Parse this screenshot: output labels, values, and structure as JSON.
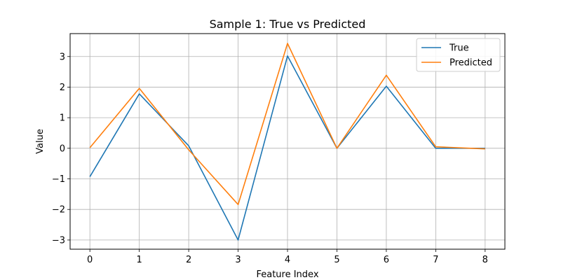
{
  "chart_data": {
    "type": "line",
    "title": "Sample 1: True vs Predicted",
    "xlabel": "Feature Index",
    "ylabel": "Value",
    "x": [
      0,
      1,
      2,
      3,
      4,
      5,
      6,
      7,
      8
    ],
    "xlim": [
      -0.4,
      8.4
    ],
    "ylim": [
      -3.3,
      3.75
    ],
    "xticks": [
      0,
      1,
      2,
      3,
      4,
      5,
      6,
      7,
      8
    ],
    "xtick_labels": [
      "0",
      "1",
      "2",
      "3",
      "4",
      "5",
      "6",
      "7",
      "8"
    ],
    "yticks": [
      -3,
      -2,
      -1,
      0,
      1,
      2,
      3
    ],
    "ytick_labels": [
      "−3",
      "−2",
      "−1",
      "0",
      "1",
      "2",
      "3"
    ],
    "grid": true,
    "legend": "top-right",
    "series": [
      {
        "name": "True",
        "color": "#1f77b4",
        "values": [
          -0.93,
          1.78,
          0.08,
          -3.0,
          3.02,
          0.0,
          2.03,
          0.0,
          0.0
        ]
      },
      {
        "name": "Predicted",
        "color": "#ff7f0e",
        "values": [
          0.02,
          1.96,
          -0.05,
          -1.84,
          3.43,
          0.0,
          2.39,
          0.05,
          -0.02
        ]
      }
    ]
  }
}
